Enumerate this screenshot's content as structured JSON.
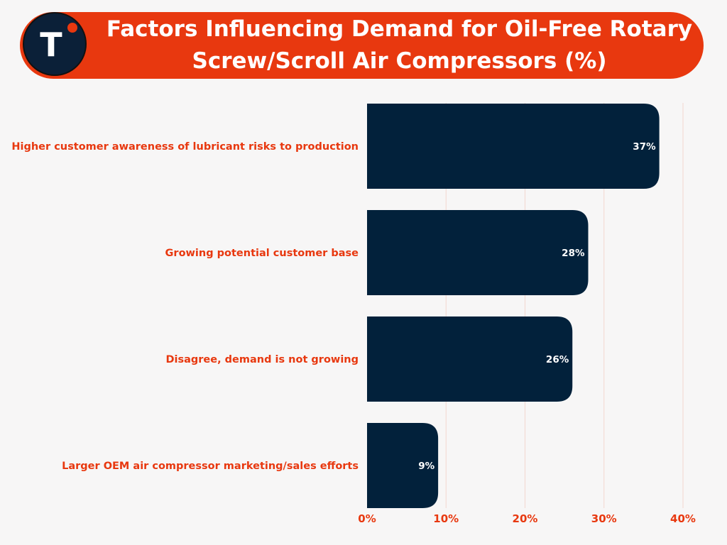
{
  "header": {
    "logo_letter": "T",
    "title": "Factors Influencing Demand for Oil-Free Rotary Screw/Scroll Air Compressors (%)"
  },
  "colors": {
    "accent": "#e8380f",
    "bar": "#02213b",
    "background": "#f7f6f6",
    "grid": "#f3d6cf"
  },
  "chart_data": {
    "type": "bar",
    "orientation": "horizontal",
    "title": "Factors Influencing Demand for Oil-Free Rotary Screw/Scroll Air Compressors (%)",
    "categories": [
      "Higher customer awareness of lubricant risks to production",
      "Growing potential customer base",
      "Disagree, demand is not growing",
      "Larger OEM air compressor marketing/sales efforts"
    ],
    "values": [
      37,
      28,
      26,
      9
    ],
    "data_labels": [
      "37%",
      "28%",
      "26%",
      "9%"
    ],
    "xlim": [
      0,
      40
    ],
    "x_ticks": [
      0,
      10,
      20,
      30,
      40
    ],
    "x_tick_labels": [
      "0%",
      "10%",
      "20%",
      "30%",
      "40%"
    ],
    "grid": true,
    "legend": "none"
  }
}
